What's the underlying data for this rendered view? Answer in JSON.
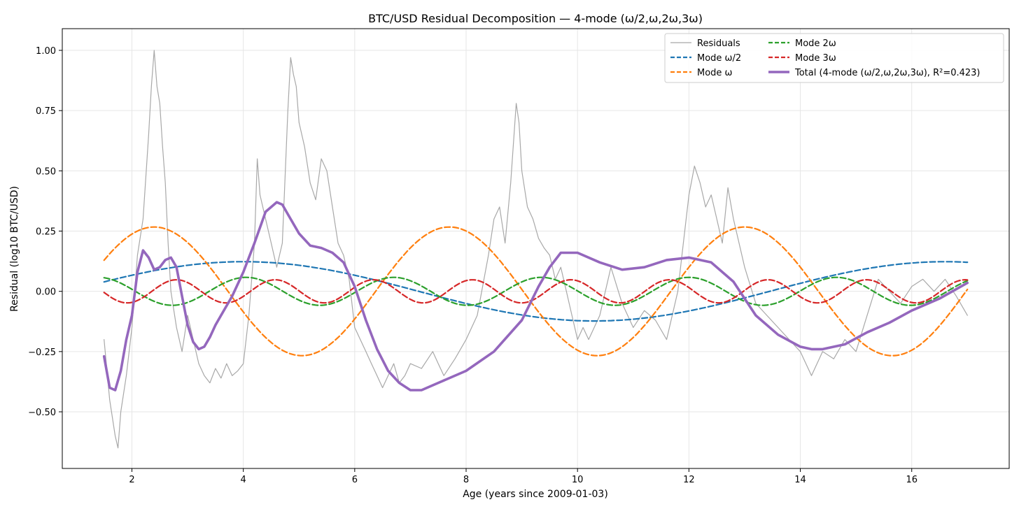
{
  "chart_data": {
    "type": "line",
    "title": "BTC/USD Residual Decomposition — 4-mode (ω/2,ω,2ω,3ω)",
    "xlabel": "Age (years since 2009-01-03)",
    "ylabel": "Residual (log10 BTC/USD)",
    "xlim": [
      0.75,
      17.75
    ],
    "ylim": [
      -0.735,
      1.09
    ],
    "xticks": [
      2,
      4,
      6,
      8,
      10,
      12,
      14,
      16
    ],
    "yticks": [
      -0.5,
      -0.25,
      0.0,
      0.25,
      0.5,
      0.75,
      1.0
    ],
    "xtick_labels": [
      "2",
      "4",
      "6",
      "8",
      "10",
      "12",
      "14",
      "16"
    ],
    "ytick_labels": [
      "−0.50",
      "−0.25",
      "0.00",
      "0.25",
      "0.50",
      "0.75",
      "1.00"
    ],
    "grid": true,
    "legend_position": "top-right",
    "series": [
      {
        "name": "Residuals",
        "color": "#a8a8a8",
        "style": "solid",
        "x": [
          1.5,
          1.6,
          1.7,
          1.75,
          1.8,
          1.9,
          2.0,
          2.1,
          2.2,
          2.3,
          2.35,
          2.4,
          2.45,
          2.5,
          2.55,
          2.6,
          2.65,
          2.7,
          2.8,
          2.9,
          3.0,
          3.1,
          3.2,
          3.3,
          3.4,
          3.5,
          3.6,
          3.7,
          3.8,
          3.9,
          4.0,
          4.1,
          4.2,
          4.25,
          4.3,
          4.4,
          4.5,
          4.6,
          4.7,
          4.8,
          4.85,
          4.9,
          4.95,
          5.0,
          5.1,
          5.2,
          5.3,
          5.4,
          5.5,
          5.6,
          5.7,
          5.8,
          5.9,
          6.0,
          6.1,
          6.2,
          6.3,
          6.4,
          6.5,
          6.6,
          6.7,
          6.8,
          6.9,
          7.0,
          7.2,
          7.4,
          7.5,
          7.6,
          7.8,
          8.0,
          8.2,
          8.4,
          8.5,
          8.6,
          8.7,
          8.8,
          8.9,
          8.95,
          9.0,
          9.1,
          9.2,
          9.3,
          9.4,
          9.5,
          9.6,
          9.7,
          9.8,
          9.9,
          10.0,
          10.1,
          10.2,
          10.4,
          10.6,
          10.8,
          11.0,
          11.2,
          11.4,
          11.6,
          11.8,
          11.9,
          12.0,
          12.1,
          12.2,
          12.3,
          12.4,
          12.5,
          12.6,
          12.7,
          12.8,
          13.0,
          13.2,
          13.4,
          13.6,
          13.8,
          14.0,
          14.2,
          14.4,
          14.6,
          14.8,
          15.0,
          15.2,
          15.4,
          15.6,
          15.8,
          16.0,
          16.2,
          16.4,
          16.6,
          16.8,
          17.0
        ],
        "y": [
          -0.2,
          -0.45,
          -0.6,
          -0.65,
          -0.5,
          -0.35,
          -0.15,
          0.15,
          0.3,
          0.65,
          0.85,
          1.0,
          0.85,
          0.78,
          0.6,
          0.45,
          0.2,
          0.0,
          -0.15,
          -0.25,
          -0.1,
          -0.2,
          -0.3,
          -0.35,
          -0.38,
          -0.32,
          -0.36,
          -0.3,
          -0.35,
          -0.33,
          -0.3,
          -0.1,
          0.2,
          0.55,
          0.4,
          0.3,
          0.2,
          0.1,
          0.2,
          0.75,
          0.97,
          0.9,
          0.85,
          0.7,
          0.6,
          0.45,
          0.38,
          0.55,
          0.5,
          0.35,
          0.2,
          0.15,
          0.05,
          -0.15,
          -0.2,
          -0.25,
          -0.3,
          -0.35,
          -0.4,
          -0.35,
          -0.3,
          -0.38,
          -0.35,
          -0.3,
          -0.32,
          -0.25,
          -0.3,
          -0.35,
          -0.28,
          -0.2,
          -0.1,
          0.15,
          0.3,
          0.35,
          0.2,
          0.45,
          0.78,
          0.7,
          0.5,
          0.35,
          0.3,
          0.22,
          0.18,
          0.15,
          0.05,
          0.1,
          0.0,
          -0.1,
          -0.2,
          -0.15,
          -0.2,
          -0.1,
          0.1,
          -0.05,
          -0.15,
          -0.08,
          -0.12,
          -0.2,
          0.0,
          0.2,
          0.4,
          0.52,
          0.45,
          0.35,
          0.4,
          0.3,
          0.2,
          0.43,
          0.3,
          0.1,
          -0.05,
          -0.1,
          -0.15,
          -0.2,
          -0.25,
          -0.35,
          -0.25,
          -0.28,
          -0.2,
          -0.25,
          -0.1,
          0.05,
          0.0,
          -0.05,
          0.02,
          0.05,
          0.0,
          0.05,
          -0.02,
          -0.1
        ]
      },
      {
        "name": "Mode ω/2",
        "color": "#1f77b4",
        "style": "dashed",
        "mode": "sin",
        "amplitude": 0.123,
        "period": 12.6,
        "peak_x": 4.0,
        "x_range": [
          1.5,
          17.0
        ]
      },
      {
        "name": "Mode ω",
        "color": "#ff7f0e",
        "style": "dashed",
        "mode": "sin",
        "amplitude": 0.267,
        "period": 5.3,
        "peak_x": 2.4,
        "x_range": [
          1.5,
          17.0
        ]
      },
      {
        "name": "Mode 2ω",
        "color": "#2ca02c",
        "style": "dashed",
        "mode": "sin",
        "amplitude": 0.058,
        "period": 2.65,
        "peak_x": 4.05,
        "x_range": [
          1.5,
          17.0
        ]
      },
      {
        "name": "Mode 3ω",
        "color": "#d62728",
        "style": "dashed",
        "mode": "sin",
        "amplitude": 0.048,
        "period": 1.77,
        "peak_x": 4.57,
        "x_range": [
          1.5,
          17.0
        ]
      },
      {
        "name": "Total (4-mode (ω/2,ω,2ω,3ω), R²=0.423)",
        "color": "#9467bd",
        "style": "solid-thick",
        "x": [
          1.5,
          1.6,
          1.7,
          1.8,
          1.9,
          2.0,
          2.1,
          2.2,
          2.3,
          2.4,
          2.5,
          2.6,
          2.7,
          2.8,
          2.9,
          3.0,
          3.1,
          3.2,
          3.3,
          3.4,
          3.5,
          3.6,
          3.8,
          4.0,
          4.2,
          4.4,
          4.6,
          4.7,
          4.8,
          5.0,
          5.2,
          5.4,
          5.6,
          5.8,
          6.0,
          6.2,
          6.4,
          6.6,
          6.8,
          7.0,
          7.2,
          7.5,
          8.0,
          8.5,
          9.0,
          9.3,
          9.5,
          9.7,
          10.0,
          10.4,
          10.8,
          11.2,
          11.6,
          12.0,
          12.4,
          12.8,
          13.2,
          13.6,
          14.0,
          14.2,
          14.4,
          14.8,
          15.2,
          15.6,
          16.0,
          16.5,
          17.0
        ],
        "y": [
          -0.27,
          -0.4,
          -0.41,
          -0.33,
          -0.2,
          -0.1,
          0.08,
          0.17,
          0.14,
          0.09,
          0.1,
          0.13,
          0.14,
          0.1,
          -0.02,
          -0.14,
          -0.21,
          -0.24,
          -0.23,
          -0.19,
          -0.14,
          -0.1,
          -0.02,
          0.08,
          0.2,
          0.33,
          0.37,
          0.36,
          0.32,
          0.24,
          0.19,
          0.18,
          0.16,
          0.12,
          0.02,
          -0.12,
          -0.24,
          -0.33,
          -0.38,
          -0.41,
          -0.41,
          -0.38,
          -0.33,
          -0.25,
          -0.12,
          0.02,
          0.1,
          0.16,
          0.16,
          0.12,
          0.09,
          0.1,
          0.13,
          0.14,
          0.12,
          0.04,
          -0.1,
          -0.18,
          -0.23,
          -0.24,
          -0.24,
          -0.22,
          -0.17,
          -0.13,
          -0.08,
          -0.03,
          0.035
        ]
      }
    ]
  }
}
